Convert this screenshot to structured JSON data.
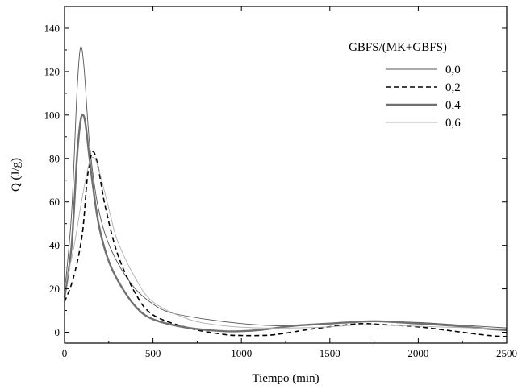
{
  "chart_data": {
    "type": "line",
    "title": "",
    "xlabel": "Tiempo (min)",
    "ylabel": "Q (J/g)",
    "xlim": [
      0,
      2500
    ],
    "ylim": [
      -5,
      150
    ],
    "xticks": [
      0,
      500,
      1000,
      1500,
      2000,
      2500
    ],
    "yticks": [
      0,
      20,
      40,
      60,
      80,
      100,
      120,
      140
    ],
    "grid": false,
    "legend": {
      "title": "GBFS/(MK+GBFS)",
      "placement": "top-right"
    },
    "series": [
      {
        "name": "0,0",
        "color": "#555555",
        "dash": "solid",
        "width": "thin",
        "x": [
          0,
          40,
          70,
          90,
          110,
          140,
          180,
          230,
          300,
          400,
          500,
          600,
          800,
          1000,
          1200,
          1400,
          1600,
          1800,
          2000,
          2200,
          2400,
          2500
        ],
        "y": [
          18,
          55,
          110,
          131,
          122,
          88,
          62,
          45,
          32,
          20,
          13,
          9,
          6,
          4,
          3,
          3.5,
          4.5,
          5,
          4.5,
          3.5,
          2.5,
          2
        ]
      },
      {
        "name": "0,2",
        "color": "#000000",
        "dash": "dashed",
        "width": "medium",
        "x": [
          0,
          50,
          100,
          130,
          160,
          190,
          230,
          300,
          400,
          500,
          700,
          900,
          1000,
          1100,
          1200,
          1400,
          1600,
          1700,
          1800,
          2000,
          2200,
          2400,
          2500
        ],
        "y": [
          14,
          25,
          45,
          72,
          83,
          76,
          58,
          36,
          18,
          8,
          2,
          -1,
          -1.5,
          -1.5,
          -1,
          1.5,
          3.5,
          4,
          3.5,
          2.5,
          0.5,
          -1.5,
          -2
        ]
      },
      {
        "name": "0,4",
        "color": "#707070",
        "dash": "solid",
        "width": "thick",
        "x": [
          0,
          40,
          70,
          90,
          105,
          120,
          150,
          190,
          240,
          300,
          400,
          500,
          700,
          900,
          1000,
          1100,
          1300,
          1500,
          1700,
          1800,
          2000,
          2200,
          2400,
          2500
        ],
        "y": [
          16,
          40,
          80,
          97,
          100,
          95,
          74,
          51,
          35,
          24,
          12,
          6,
          2,
          0.5,
          0.5,
          1,
          3,
          4,
          5,
          5,
          4,
          3,
          1.5,
          1
        ]
      },
      {
        "name": "0,6",
        "color": "#b0b0b0",
        "dash": "solid",
        "width": "thin",
        "x": [
          0,
          50,
          100,
          140,
          170,
          200,
          250,
          300,
          400,
          500,
          700,
          900,
          1100,
          1300,
          1500,
          1700,
          1900,
          2100,
          2300,
          2500
        ],
        "y": [
          20,
          38,
          62,
          78,
          80,
          73,
          57,
          42,
          25,
          14,
          6,
          3,
          2,
          2,
          2.5,
          3.5,
          3,
          2.5,
          2,
          1.5
        ]
      }
    ]
  }
}
